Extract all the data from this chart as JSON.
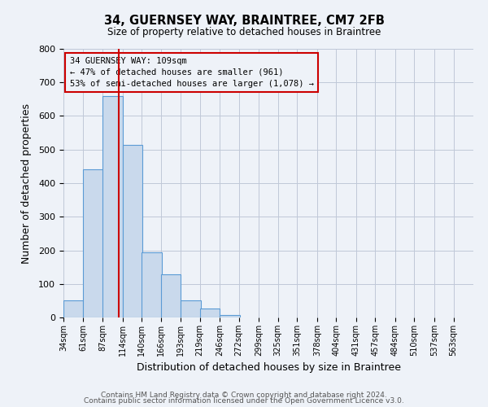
{
  "title": "34, GUERNSEY WAY, BRAINTREE, CM7 2FB",
  "subtitle": "Size of property relative to detached houses in Braintree",
  "xlabel": "Distribution of detached houses by size in Braintree",
  "ylabel": "Number of detached properties",
  "bar_labels": [
    "34sqm",
    "61sqm",
    "87sqm",
    "114sqm",
    "140sqm",
    "166sqm",
    "193sqm",
    "219sqm",
    "246sqm",
    "272sqm",
    "299sqm",
    "325sqm",
    "351sqm",
    "378sqm",
    "404sqm",
    "431sqm",
    "457sqm",
    "484sqm",
    "510sqm",
    "537sqm",
    "563sqm"
  ],
  "bar_values": [
    50,
    440,
    660,
    515,
    195,
    128,
    50,
    27,
    8,
    0,
    0,
    0,
    0,
    0,
    0,
    0,
    0,
    0,
    0,
    0,
    0
  ],
  "bar_color": "#c9d9ec",
  "bar_edgecolor": "#5b9bd5",
  "bin_edges": [
    34,
    61,
    87,
    114,
    140,
    166,
    193,
    219,
    246,
    272,
    299,
    325,
    351,
    378,
    404,
    431,
    457,
    484,
    510,
    537,
    563
  ],
  "bin_width": 27,
  "property_size": 109,
  "vline_color": "#cc0000",
  "annotation_line1": "34 GUERNSEY WAY: 109sqm",
  "annotation_line2": "← 47% of detached houses are smaller (961)",
  "annotation_line3": "53% of semi-detached houses are larger (1,078) →",
  "annotation_box_edgecolor": "#cc0000",
  "ylim": [
    0,
    800
  ],
  "yticks": [
    0,
    100,
    200,
    300,
    400,
    500,
    600,
    700,
    800
  ],
  "grid_color": "#c0c8d8",
  "bg_color": "#eef2f8",
  "footnote1": "Contains HM Land Registry data © Crown copyright and database right 2024.",
  "footnote2": "Contains public sector information licensed under the Open Government Licence v3.0."
}
